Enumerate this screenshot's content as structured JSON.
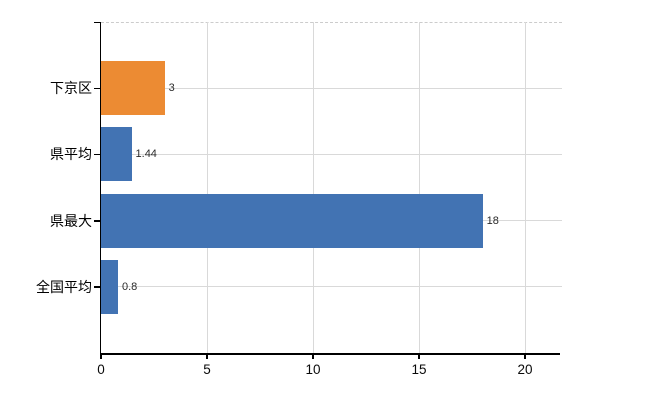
{
  "chart_data": {
    "type": "bar",
    "orientation": "horizontal",
    "categories": [
      "下京区",
      "県平均",
      "県最大",
      "全国平均"
    ],
    "values": [
      3,
      1.44,
      18,
      0.8
    ],
    "value_labels": [
      "3",
      "1.44",
      "18",
      "0.8"
    ],
    "bar_colors": [
      "#ec8b33",
      "#4273b3",
      "#4273b3",
      "#4273b3"
    ],
    "x_axis": {
      "tick_labels": [
        "0",
        "5",
        "10",
        "15",
        "20"
      ],
      "tick_values": [
        0,
        5,
        10,
        15,
        20
      ],
      "range": [
        0,
        21.65
      ]
    },
    "grid": {
      "vertical": true,
      "horizontal": true,
      "color": "#d9d9d9",
      "top_border_style": "dashed"
    },
    "colors": {
      "highlight_orange": "#ec8b33",
      "primary_blue": "#4273b3",
      "axis": "#000000",
      "gridline": "#d9d9d9",
      "background": "#ffffff"
    },
    "legend": false,
    "title": ""
  }
}
